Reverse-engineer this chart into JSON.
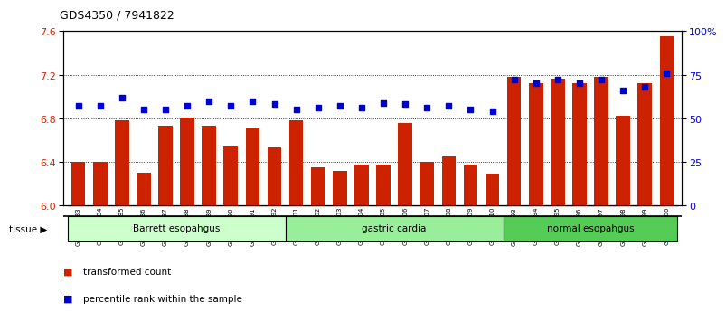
{
  "title": "GDS4350 / 7941822",
  "samples": [
    "GSM851983",
    "GSM851984",
    "GSM851985",
    "GSM851986",
    "GSM851987",
    "GSM851988",
    "GSM851989",
    "GSM851990",
    "GSM851991",
    "GSM851992",
    "GSM852001",
    "GSM852002",
    "GSM852003",
    "GSM852004",
    "GSM852005",
    "GSM852006",
    "GSM852007",
    "GSM852008",
    "GSM852009",
    "GSM852010",
    "GSM851993",
    "GSM851994",
    "GSM851995",
    "GSM851996",
    "GSM851997",
    "GSM851998",
    "GSM851999",
    "GSM852000"
  ],
  "bar_values": [
    6.4,
    6.4,
    6.78,
    6.3,
    6.73,
    6.81,
    6.73,
    6.55,
    6.72,
    6.53,
    6.78,
    6.35,
    6.32,
    6.38,
    6.38,
    6.76,
    6.4,
    6.45,
    6.38,
    6.29,
    7.18,
    7.12,
    7.16,
    7.12,
    7.18,
    6.82,
    7.12,
    7.55
  ],
  "dot_values": [
    57,
    57,
    62,
    55,
    55,
    57,
    60,
    57,
    60,
    58,
    55,
    56,
    57,
    56,
    59,
    58,
    56,
    57,
    55,
    54,
    72,
    70,
    72,
    70,
    72,
    66,
    68,
    76
  ],
  "groups": [
    {
      "label": "Barrett esopahgus",
      "start": 0,
      "end": 10,
      "color": "#ccffcc"
    },
    {
      "label": "gastric cardia",
      "start": 10,
      "end": 20,
      "color": "#99ee99"
    },
    {
      "label": "normal esopahgus",
      "start": 20,
      "end": 28,
      "color": "#55cc55"
    }
  ],
  "ylim_left": [
    6.0,
    7.6
  ],
  "ylim_right": [
    0,
    100
  ],
  "yticks_left": [
    6.0,
    6.4,
    6.8,
    7.2,
    7.6
  ],
  "yticks_right": [
    0,
    25,
    50,
    75,
    100
  ],
  "ytick_labels_right": [
    "0",
    "25",
    "50",
    "75",
    "100%"
  ],
  "bar_color": "#cc2200",
  "dot_color": "#0000cc",
  "background_color": "#ffffff",
  "xlabel_color": "#cc2200",
  "ylabel_right_color": "#0000cc",
  "legend_bar_label": "transformed count",
  "legend_dot_label": "percentile rank within the sample",
  "tissue_label": "tissue ▶",
  "bar_bottom": 6.0,
  "xtick_bg": "#dddddd"
}
